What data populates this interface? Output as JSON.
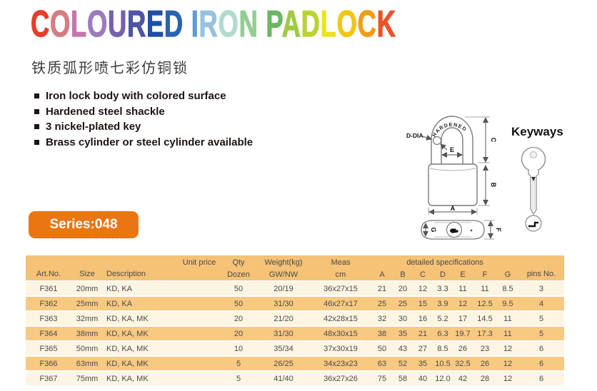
{
  "header": {
    "title_letters": [
      {
        "ch": "C",
        "color": "#e63e2a"
      },
      {
        "ch": "O",
        "color": "#d47d80"
      },
      {
        "ch": "L",
        "color": "#c477ae"
      },
      {
        "ch": "O",
        "color": "#9d7abc"
      },
      {
        "ch": "U",
        "color": "#7561ab"
      },
      {
        "ch": "R",
        "color": "#4f55a5"
      },
      {
        "ch": "E",
        "color": "#1e4fa5"
      },
      {
        "ch": "D",
        "color": "#2a63b0"
      },
      {
        "ch": " "
      },
      {
        "ch": "I",
        "color": "#5e9cd3"
      },
      {
        "ch": "R",
        "color": "#97c2e0"
      },
      {
        "ch": "O",
        "color": "#b2dad2"
      },
      {
        "ch": "N",
        "color": "#92cd92"
      },
      {
        "ch": " "
      },
      {
        "ch": "P",
        "color": "#6cb763"
      },
      {
        "ch": "A",
        "color": "#a0ca45"
      },
      {
        "ch": "D",
        "color": "#bcd232"
      },
      {
        "ch": "L",
        "color": "#ece41a"
      },
      {
        "ch": "O",
        "color": "#f2c614"
      },
      {
        "ch": "C",
        "color": "#f29d18"
      },
      {
        "ch": "K",
        "color": "#e8542a"
      }
    ],
    "subtitle_cn": "铁质弧形喷七彩仿铜锁"
  },
  "features": [
    "Iron lock body with colored surface",
    "Hardened steel shackle",
    "3 nickel-plated key",
    "Brass cylinder or steel cylinder available"
  ],
  "diagram": {
    "shackle_text": "HARDENED",
    "labels": {
      "d_dia": "D-DIA",
      "E": "E",
      "C": "C",
      "B": "B",
      "A": "A",
      "G": "G",
      "F": "F"
    }
  },
  "keyways": {
    "label": "Keyways"
  },
  "series": {
    "label": "Series:048",
    "color": "#e97612"
  },
  "table": {
    "colors": {
      "header_bg": "#f5c276",
      "row_odd_bg": "#fdf5e3",
      "row_even_bg": "#f8c981"
    },
    "header": {
      "art_no": "Art.No.",
      "size": "Size",
      "description": "Description",
      "unit_price": "Unit price",
      "qty": "Qty",
      "dozen": "Dozen",
      "weight": "Weight(kg)",
      "gwnw": "GW/NW",
      "meas": "Meas",
      "cm": "cm",
      "detailed": "detailed specifications",
      "cols": [
        "A",
        "B",
        "C",
        "D",
        "E",
        "F",
        "G"
      ],
      "pins": "pins No."
    },
    "rows": [
      {
        "art": "F361",
        "size": "20mm",
        "desc": "KD, KA",
        "unit": "",
        "qty": "50",
        "weight": "20/19",
        "meas": "36x27x15",
        "A": "21",
        "B": "20",
        "C": "12",
        "D": "3.3",
        "E": "11",
        "F": "11",
        "G": "8.5",
        "pins": "3"
      },
      {
        "art": "F362",
        "size": "25mm",
        "desc": "KD, KA",
        "unit": "",
        "qty": "50",
        "weight": "31/30",
        "meas": "46x27x17",
        "A": "25",
        "B": "25",
        "C": "15",
        "D": "3.9",
        "E": "12",
        "F": "12.5",
        "G": "9.5",
        "pins": "4"
      },
      {
        "art": "F363",
        "size": "32mm",
        "desc": "KD, KA, MK",
        "unit": "",
        "qty": "20",
        "weight": "21/20",
        "meas": "42x28x15",
        "A": "32",
        "B": "30",
        "C": "16",
        "D": "5.2",
        "E": "17",
        "F": "14.5",
        "G": "11",
        "pins": "5"
      },
      {
        "art": "F364",
        "size": "38mm",
        "desc": "KD, KA, MK",
        "unit": "",
        "qty": "20",
        "weight": "31/30",
        "meas": "48x30x15",
        "A": "38",
        "B": "35",
        "C": "21",
        "D": "6.3",
        "E": "19.7",
        "F": "17.3",
        "G": "11",
        "pins": "5"
      },
      {
        "art": "F365",
        "size": "50mm",
        "desc": "KD, KA, MK",
        "unit": "",
        "qty": "10",
        "weight": "35/34",
        "meas": "37x30x19",
        "A": "50",
        "B": "43",
        "C": "27",
        "D": "8.5",
        "E": "26",
        "F": "23",
        "G": "12",
        "pins": "6"
      },
      {
        "art": "F366",
        "size": "63mm",
        "desc": "KD, KA, MK",
        "unit": "",
        "qty": "5",
        "weight": "26/25",
        "meas": "34x23x23",
        "A": "63",
        "B": "52",
        "C": "35",
        "D": "10.5",
        "E": "32.5",
        "F": "26",
        "G": "12",
        "pins": "6"
      },
      {
        "art": "F367",
        "size": "75mm",
        "desc": "KD, KA, MK",
        "unit": "",
        "qty": "5",
        "weight": "41/40",
        "meas": "36x27x26",
        "A": "75",
        "B": "58",
        "C": "40",
        "D": "12.0",
        "E": "42",
        "F": "28",
        "G": "12",
        "pins": "6"
      }
    ]
  }
}
